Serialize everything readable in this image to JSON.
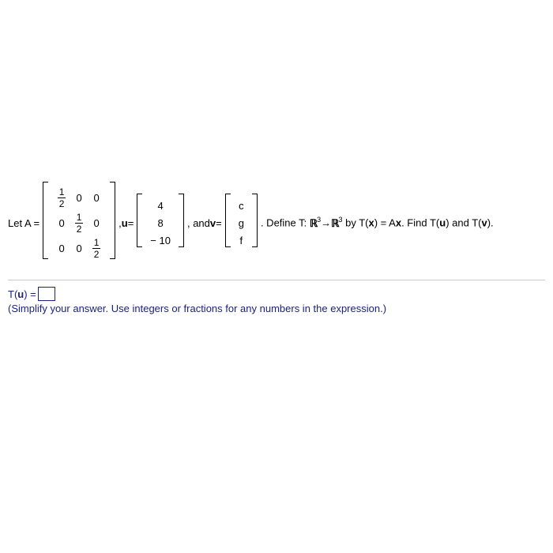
{
  "problem": {
    "let_text": "Let A =",
    "matrix_A": {
      "type": "matrix",
      "rows": 3,
      "cols": 3,
      "cells": [
        [
          {
            "frac": [
              "1",
              "2"
            ]
          },
          "0",
          "0"
        ],
        [
          "0",
          {
            "frac": [
              "1",
              "2"
            ]
          },
          "0"
        ],
        [
          "0",
          "0",
          {
            "frac": [
              "1",
              "2"
            ]
          }
        ]
      ],
      "height_class": "h3"
    },
    "comma1": ", ",
    "u_eq": "u",
    "eq1": " =",
    "vector_u": {
      "type": "vector",
      "cells": [
        "4",
        "8",
        "− 10"
      ],
      "height_class": "hv"
    },
    "comma2": ", and ",
    "v_eq": "v",
    "eq2": " =",
    "vector_v": {
      "type": "vector",
      "cells": [
        "c",
        "g",
        "f"
      ],
      "height_class": "hv"
    },
    "define_part1": ". Define T: ",
    "real_sym": "ℝ",
    "sup3_1": "3",
    "arrow": "→",
    "sup3_2": "3",
    "define_part2": " by T(",
    "x_bold": "x",
    "define_part3": ") = A",
    "define_part4": ". Find T(",
    "u_bold2": "u",
    "define_part5": ") and T(",
    "v_bold2": "v",
    "define_part6": ")."
  },
  "answer": {
    "label_part1": "T(",
    "label_u": "u",
    "label_part2": ") =",
    "instruction": "(Simplify your answer. Use integers or fractions for any numbers in the expression.)"
  },
  "colors": {
    "text": "#000000",
    "answer_text": "#1a237e",
    "divider": "#cccccc"
  }
}
